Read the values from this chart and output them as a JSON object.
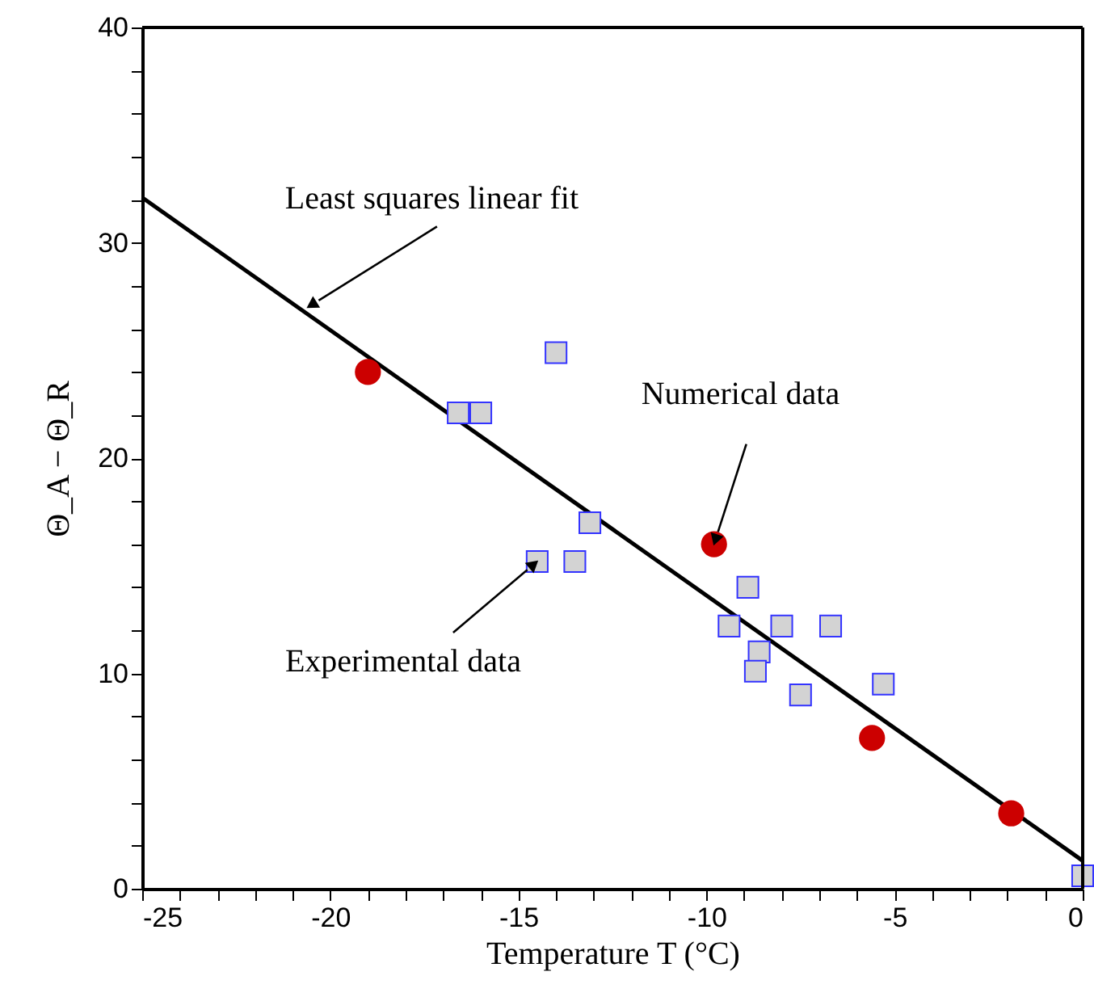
{
  "chart_data": {
    "type": "scatter",
    "xlabel": "Temperature T (°C)",
    "ylabel": "Θ_A − Θ_R",
    "xlim": [
      -25,
      0
    ],
    "ylim": [
      0,
      40
    ],
    "xticks": [
      -25,
      {
        "value": -24,
        "label": null
      },
      {
        "value": -23,
        "label": null
      },
      {
        "value": -22,
        "label": null
      },
      {
        "value": -21,
        "label": null
      },
      -20,
      {
        "value": -19,
        "label": null
      },
      {
        "value": -18,
        "label": null
      },
      {
        "value": -17,
        "label": null
      },
      {
        "value": -16,
        "label": null
      },
      -15,
      {
        "value": -14,
        "label": null
      },
      {
        "value": -13,
        "label": null
      },
      {
        "value": -12,
        "label": null
      },
      {
        "value": -11,
        "label": null
      },
      -10,
      {
        "value": -9,
        "label": null
      },
      {
        "value": -8,
        "label": null
      },
      {
        "value": -7,
        "label": null
      },
      {
        "value": -6,
        "label": null
      },
      -5,
      {
        "value": -4,
        "label": null
      },
      {
        "value": -3,
        "label": null
      },
      {
        "value": -2,
        "label": null
      },
      {
        "value": -1,
        "label": null
      },
      0
    ],
    "yticks": [
      0,
      {
        "value": 2,
        "label": null
      },
      {
        "value": 4,
        "label": null
      },
      {
        "value": 6,
        "label": null
      },
      {
        "value": 8,
        "label": null
      },
      10,
      {
        "value": 12,
        "label": null
      },
      {
        "value": 14,
        "label": null
      },
      {
        "value": 16,
        "label": null
      },
      {
        "value": 18,
        "label": null
      },
      20,
      {
        "value": 22,
        "label": null
      },
      {
        "value": 24,
        "label": null
      },
      {
        "value": 26,
        "label": null
      },
      {
        "value": 28,
        "label": null
      },
      30,
      {
        "value": 32,
        "label": null
      },
      {
        "value": 34,
        "label": null
      },
      {
        "value": 36,
        "label": null
      },
      {
        "value": 38,
        "label": null
      },
      40
    ],
    "grid": false,
    "series": [
      {
        "type": "line",
        "color": "#000000",
        "line_style": "solid",
        "marker": "none",
        "x": [
          -25,
          0
        ],
        "values": [
          32.1,
          1.3
        ]
      },
      {
        "color": "#d3d3d3",
        "marker": "square",
        "x": [
          -16.6,
          -16.0,
          -14.0,
          -13.1,
          -14.5,
          -13.5,
          -8.9,
          -9.4,
          -8.6,
          -8.7,
          -8.0,
          -6.7,
          -7.5,
          -5.3,
          0
        ],
        "values": [
          22.1,
          22.1,
          24.9,
          17.0,
          15.2,
          15.2,
          14.0,
          12.2,
          11.0,
          10.1,
          12.2,
          12.2,
          9.0,
          9.5,
          0.6
        ]
      },
      {
        "type": "scatter",
        "color": "#cc0000",
        "marker": "circle",
        "x": [
          -19.0,
          -9.8,
          -5.6,
          -1.9
        ],
        "values": [
          24.0,
          16.0,
          7.0,
          3.5
        ]
      }
    ],
    "annotations": [
      {
        "text": "Least squares linear fit",
        "x": -20.6,
        "y": 27.0
      },
      {
        "text": "Numerical data",
        "x": -9.8,
        "y": 16.0
      },
      {
        "text": "Experimental data",
        "x": -14.5,
        "y": 15.2
      }
    ]
  }
}
